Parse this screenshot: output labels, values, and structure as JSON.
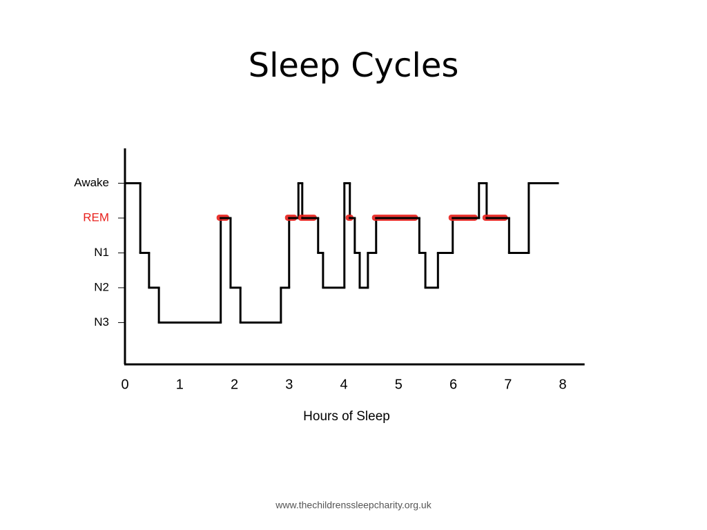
{
  "chart_data": {
    "type": "line",
    "title": "Sleep Cycles",
    "x_label": "Hours of Sleep",
    "source": "www.thechildrenssleepcharity.org.uk",
    "step": true,
    "xlim": [
      0,
      8.4
    ],
    "xticks": [
      0,
      1,
      2,
      3,
      4,
      5,
      6,
      7,
      8
    ],
    "ylim": [
      -1.2,
      5
    ],
    "yticks": [
      {
        "value": 4,
        "label": "Awake"
      },
      {
        "value": 3,
        "label": "REM"
      },
      {
        "value": 2,
        "label": "N1"
      },
      {
        "value": 1,
        "label": "N2"
      },
      {
        "value": 0,
        "label": "N3"
      }
    ],
    "highlight": {
      "value": 3,
      "color": "#e8201c"
    },
    "series": [
      {
        "color": "#000000",
        "x": [
          0,
          0.28,
          0.44,
          0.62,
          1.75,
          1.93,
          2.11,
          2.85,
          3.0,
          3.17,
          3.24,
          3.53,
          3.62,
          4.01,
          4.11,
          4.2,
          4.29,
          4.44,
          4.59,
          5.38,
          5.49,
          5.72,
          5.99,
          6.47,
          6.61,
          7.02,
          7.38,
          7.91
        ],
        "values": [
          4,
          2,
          1,
          0,
          3,
          1,
          0,
          1,
          3,
          4,
          3,
          2,
          1,
          4,
          3,
          2,
          1,
          2,
          3,
          2,
          1,
          2,
          3,
          4,
          3,
          2,
          4,
          4
        ]
      }
    ]
  }
}
